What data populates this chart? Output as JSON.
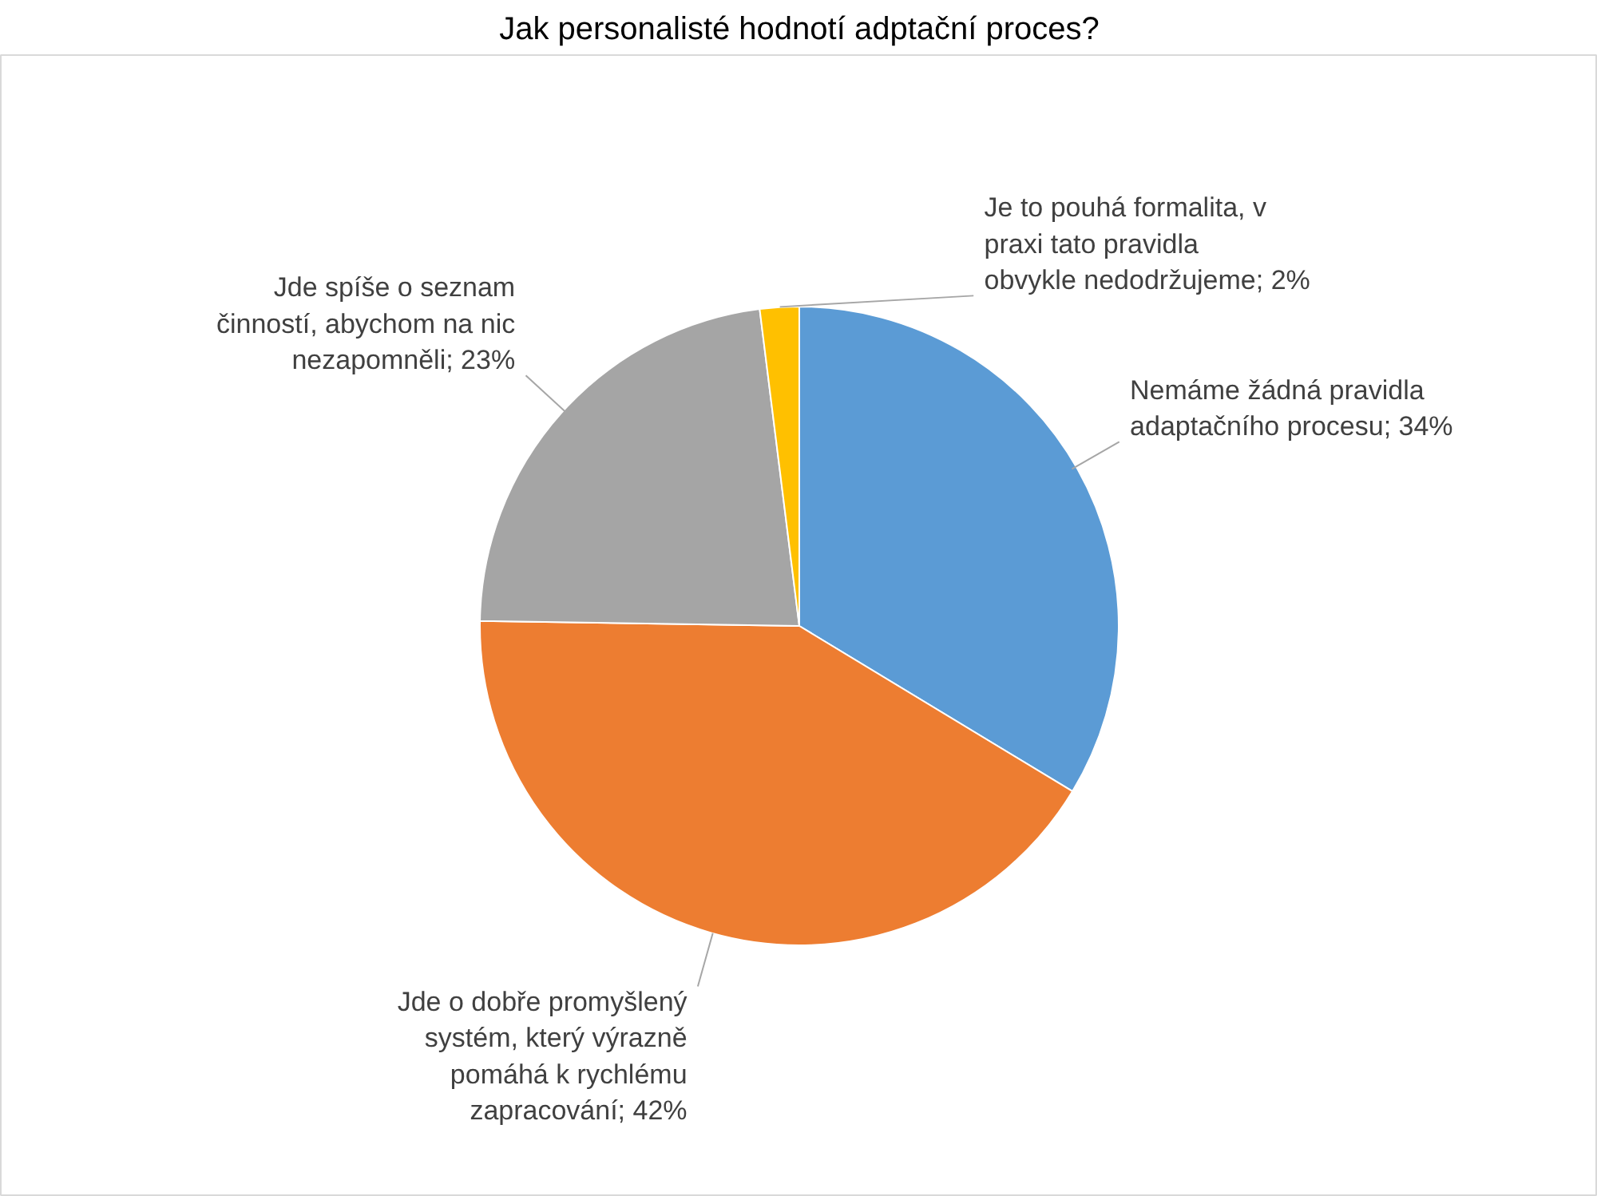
{
  "chart_data": {
    "type": "pie",
    "title": "Jak personalisté hodnotí adptační proces?",
    "categories": [
      "Nemáme žádná pravidla adaptačního procesu",
      "Jde o dobře promyšlený systém, který výrazně pomáhá k rychlému zapracování",
      "Jde spíše o seznam činností, abychom na nic nezapomněli",
      "Je to pouhá formalita, v praxi tato pravidla obvykle nedodržujeme"
    ],
    "values": [
      34,
      42,
      23,
      2
    ],
    "value_labels": [
      "34%",
      "42%",
      "23%",
      "2%"
    ],
    "colors": [
      "#5b9bd5",
      "#ed7d31",
      "#a5a5a5",
      "#ffc000"
    ]
  }
}
